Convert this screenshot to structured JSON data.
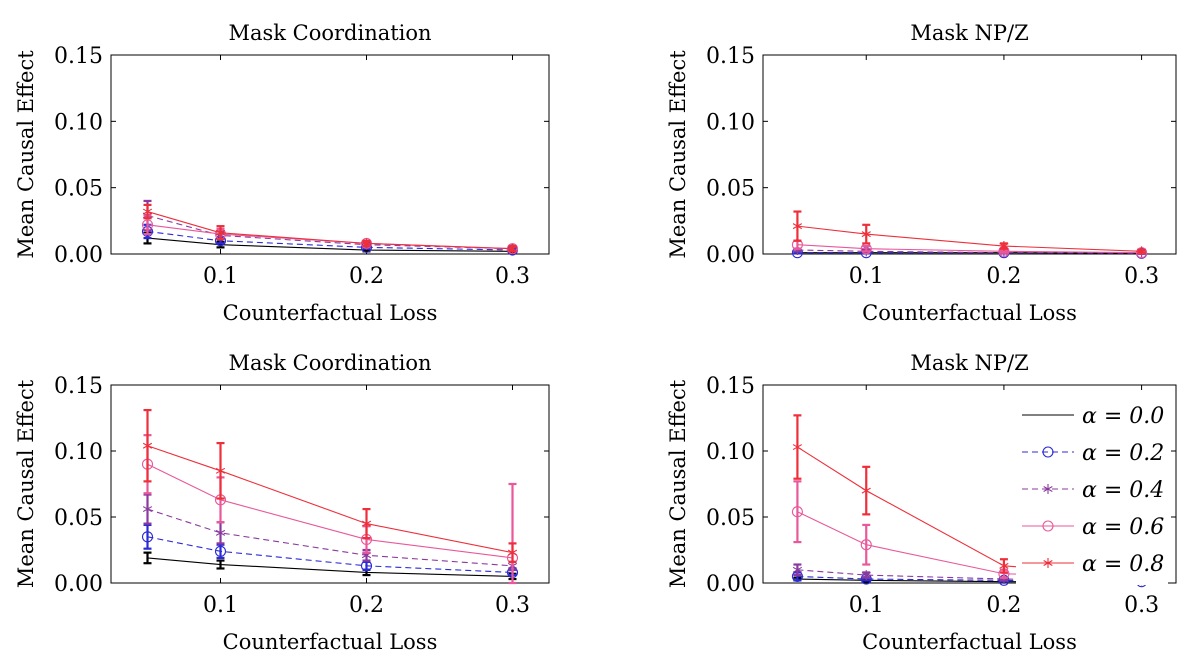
{
  "chart_data": [
    {
      "type": "line",
      "title": "Mask Coordination",
      "xlabel": "Counterfactual Loss",
      "ylabel": "Mean Causal Effect",
      "x": [
        0.05,
        0.1,
        0.2,
        0.3
      ],
      "xlim": [
        0.025,
        0.325
      ],
      "ylim": [
        0,
        0.15
      ],
      "xticks": [
        "0.1",
        "0.2",
        "0.3"
      ],
      "yticks": [
        "0.00",
        "0.05",
        "0.10",
        "0.15"
      ],
      "legend": false,
      "series": [
        {
          "name": "α = 0.0",
          "values": [
            0.012,
            0.007,
            0.003,
            0.002
          ],
          "err": [
            0.004,
            0.002,
            0.001,
            0.001
          ]
        },
        {
          "name": "α = 0.2",
          "values": [
            0.017,
            0.01,
            0.005,
            0.003
          ],
          "err": [
            0.005,
            0.002,
            0.001,
            0.001
          ]
        },
        {
          "name": "α = 0.4",
          "values": [
            0.029,
            0.014,
            0.007,
            0.004
          ],
          "err": [
            0.011,
            0.003,
            0.002,
            0.001
          ]
        },
        {
          "name": "α = 0.6",
          "values": [
            0.022,
            0.015,
            0.008,
            0.004
          ],
          "err": [
            0.007,
            0.004,
            0.002,
            0.002
          ]
        },
        {
          "name": "α = 0.8",
          "values": [
            0.032,
            0.016,
            0.008,
            0.004
          ],
          "err": [
            0.005,
            0.005,
            0.002,
            0.002
          ]
        }
      ]
    },
    {
      "type": "line",
      "title": "Mask NP/Z",
      "xlabel": "Counterfactual Loss",
      "ylabel": "Mean Causal Effect",
      "x": [
        0.05,
        0.1,
        0.2,
        0.3
      ],
      "xlim": [
        0.025,
        0.325
      ],
      "ylim": [
        0,
        0.15
      ],
      "xticks": [
        "0.1",
        "0.2",
        "0.3"
      ],
      "yticks": [
        "0.00",
        "0.05",
        "0.10",
        "0.15"
      ],
      "legend": false,
      "series": [
        {
          "name": "α = 0.0",
          "values": [
            0.001,
            0.001,
            0.001,
            0.0005
          ],
          "err": [
            0.0005,
            0.0005,
            0.0005,
            0.0003
          ]
        },
        {
          "name": "α = 0.2",
          "values": [
            0.001,
            0.001,
            0.001,
            0.0005
          ],
          "err": [
            0.0005,
            0.0005,
            0.0005,
            0.0003
          ]
        },
        {
          "name": "α = 0.4",
          "values": [
            0.003,
            0.002,
            0.001,
            0.001
          ],
          "err": [
            0.001,
            0.001,
            0.0005,
            0.0005
          ]
        },
        {
          "name": "α = 0.6",
          "values": [
            0.007,
            0.004,
            0.002,
            0.001
          ],
          "err": [
            0.003,
            0.002,
            0.001,
            0.0005
          ]
        },
        {
          "name": "α = 0.8",
          "values": [
            0.021,
            0.015,
            0.006,
            0.002
          ],
          "err": [
            0.011,
            0.007,
            0.002,
            0.001
          ]
        }
      ]
    },
    {
      "type": "line",
      "title": "Mask Coordination",
      "xlabel": "Counterfactual Loss",
      "ylabel": "Mean Causal Effect",
      "x": [
        0.05,
        0.1,
        0.2,
        0.3
      ],
      "xlim": [
        0.025,
        0.325
      ],
      "ylim": [
        0,
        0.15
      ],
      "xticks": [
        "0.1",
        "0.2",
        "0.3"
      ],
      "yticks": [
        "0.00",
        "0.05",
        "0.10",
        "0.15"
      ],
      "legend": false,
      "series": [
        {
          "name": "α = 0.0",
          "values": [
            0.019,
            0.014,
            0.008,
            0.005
          ],
          "err": [
            0.004,
            0.003,
            0.002,
            0.002
          ]
        },
        {
          "name": "α = 0.2",
          "values": [
            0.035,
            0.024,
            0.013,
            0.008
          ],
          "err": [
            0.009,
            0.005,
            0.003,
            0.002
          ]
        },
        {
          "name": "α = 0.4",
          "values": [
            0.056,
            0.038,
            0.021,
            0.013
          ],
          "err": [
            0.011,
            0.008,
            0.004,
            0.003
          ]
        },
        {
          "name": "α = 0.6",
          "values": [
            0.09,
            0.063,
            0.033,
            0.019
          ],
          "err": [
            0.022,
            0.017,
            0.01,
            0.056
          ]
        },
        {
          "name": "α = 0.8",
          "values": [
            0.104,
            0.085,
            0.045,
            0.023
          ],
          "err": [
            0.027,
            0.021,
            0.011,
            0.007
          ]
        }
      ]
    },
    {
      "type": "line",
      "title": "Mask NP/Z",
      "xlabel": "Counterfactual Loss",
      "ylabel": "Mean Causal Effect",
      "x": [
        0.05,
        0.1,
        0.2,
        0.3
      ],
      "xlim": [
        0.025,
        0.325
      ],
      "ylim": [
        0,
        0.15
      ],
      "xticks": [
        "0.1",
        "0.2",
        "0.3"
      ],
      "yticks": [
        "0.00",
        "0.05",
        "0.10",
        "0.15"
      ],
      "legend": true,
      "legend_position": "top-right",
      "series": [
        {
          "name": "α = 0.0",
          "values": [
            0.003,
            0.002,
            0.001,
            0.001
          ],
          "err": [
            0.001,
            0.001,
            0.0005,
            0.0005
          ]
        },
        {
          "name": "α = 0.2",
          "values": [
            0.005,
            0.003,
            0.002,
            0.001
          ],
          "err": [
            0.003,
            0.001,
            0.001,
            0.0005
          ]
        },
        {
          "name": "α = 0.4",
          "values": [
            0.01,
            0.006,
            0.003,
            0.002
          ],
          "err": [
            0.004,
            0.002,
            0.001,
            0.001
          ]
        },
        {
          "name": "α = 0.6",
          "values": [
            0.054,
            0.029,
            0.007,
            0.004
          ],
          "err": [
            0.023,
            0.015,
            0.003,
            0.002
          ]
        },
        {
          "name": "α = 0.8",
          "values": [
            0.103,
            0.07,
            0.013,
            0.005
          ],
          "err": [
            0.024,
            0.018,
            0.005,
            0.002
          ]
        }
      ]
    }
  ],
  "series_styles": [
    {
      "color": "#000000",
      "dash": "none",
      "marker": "none"
    },
    {
      "color": "#2b2bd6",
      "dash": "dashed",
      "marker": "circle"
    },
    {
      "color": "#8a3a9e",
      "dash": "dashed",
      "marker": "star"
    },
    {
      "color": "#e8589a",
      "dash": "none",
      "marker": "circle"
    },
    {
      "color": "#ee2f3a",
      "dash": "none",
      "marker": "star"
    }
  ]
}
